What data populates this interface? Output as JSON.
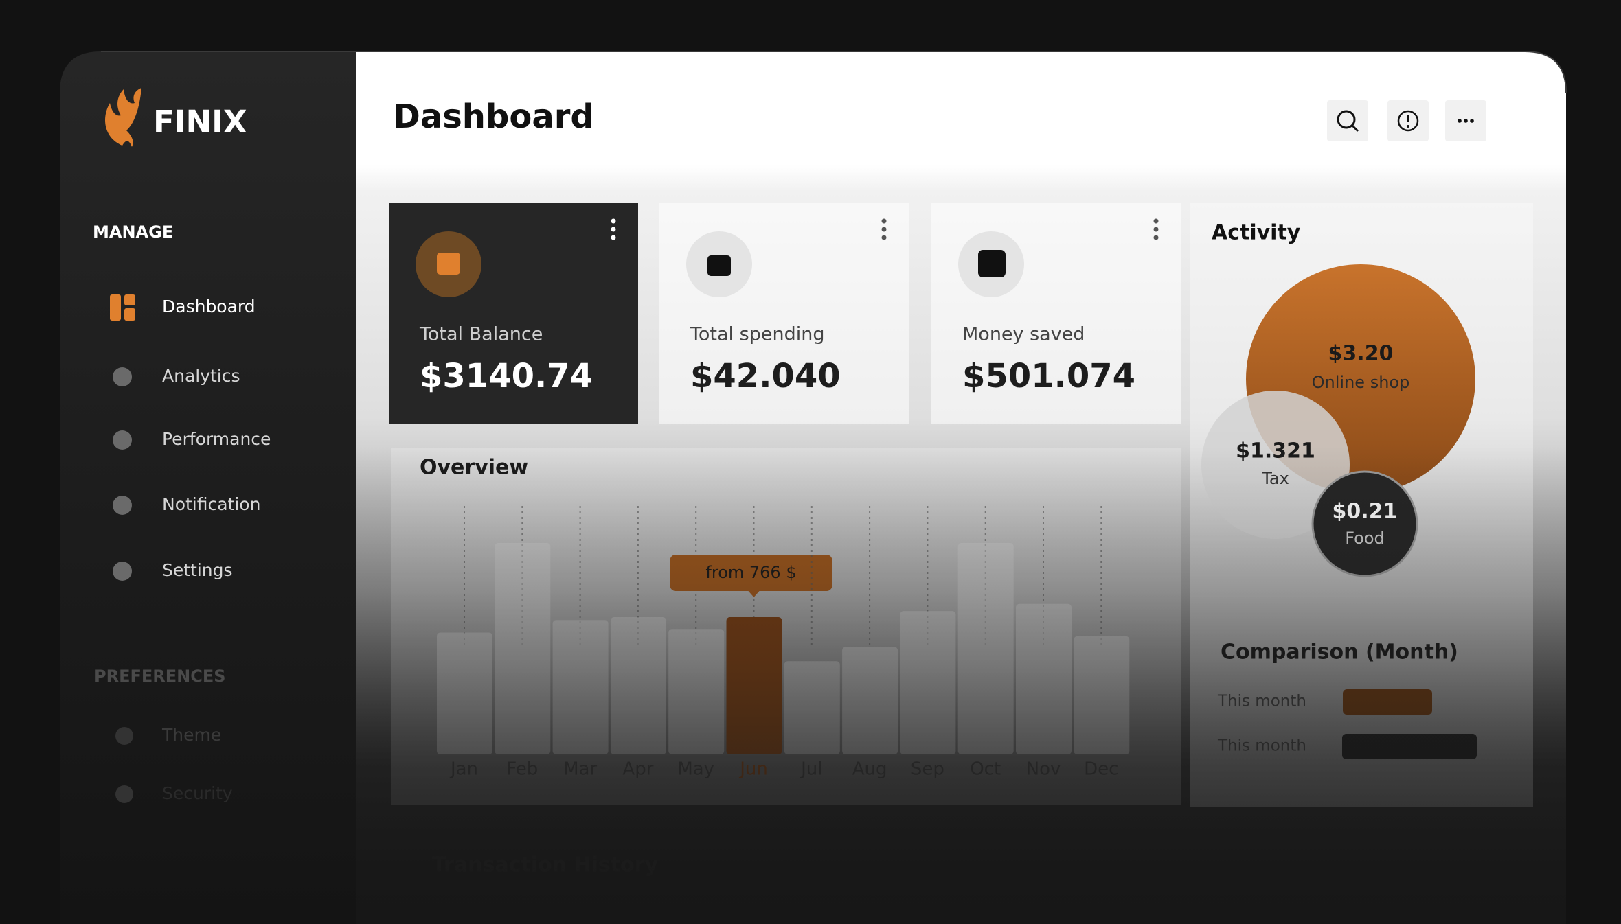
{
  "sidebar": {
    "brand": "FINIX",
    "manage_heading": "MANAGE",
    "manage": [
      "Dashboard",
      "Analytics",
      "Performance",
      "Notification",
      "Settings"
    ],
    "preferences_heading": "PREFERENCES",
    "preferences": [
      "Theme",
      "Security"
    ]
  },
  "header": {
    "title": "Dashboard"
  },
  "cards": [
    {
      "label": "Total Balance",
      "value": "$3140.74"
    },
    {
      "label": "Total spending",
      "value": "$42.040"
    },
    {
      "label": "Money saved",
      "value": "$501.074"
    }
  ],
  "chart_data": {
    "type": "bar",
    "title": "Overview",
    "categories": [
      "Jan",
      "Feb",
      "Mar",
      "Apr",
      "May",
      "Jun",
      "Jul",
      "Aug",
      "Sep",
      "Oct",
      "Nov",
      "Dec"
    ],
    "values": [
      680,
      1180,
      750,
      766,
      700,
      766,
      520,
      600,
      800,
      1180,
      840,
      660
    ],
    "color": "#d2d2d2",
    "highlight": "Jun",
    "highlight_color": "#7a3e12",
    "annotation": "from 766 $"
  },
  "activity": {
    "title": "Activity",
    "items": [
      {
        "value": "$3.20",
        "label": "Online shop"
      },
      {
        "value": "$1.321",
        "label": "Tax"
      },
      {
        "value": "$0.21",
        "label": "Food"
      }
    ]
  },
  "comparison": {
    "title": "Comparison (Month)",
    "rows": [
      "This month",
      "This month"
    ]
  },
  "transactions": {
    "title": "Transaction History"
  }
}
